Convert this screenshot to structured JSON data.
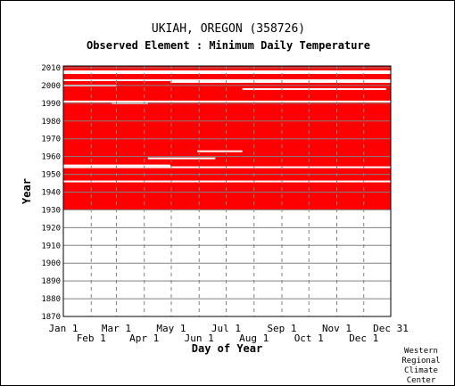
{
  "chart_data": {
    "type": "heatmap",
    "title": "UKIAH, OREGON   (358726)",
    "subtitle": "Observed Element : Minimum Daily Temperature",
    "xlabel": "Day of Year",
    "ylabel": "Year",
    "x_ticks_top_row": [
      "Jan 1",
      "Mar 1",
      "May 1",
      "Jul 1",
      "Sep 1",
      "Nov 1",
      "Dec 31"
    ],
    "x_ticks_bottom_row": [
      "Feb 1",
      "Apr 1",
      "Jun 1",
      "Aug 1",
      "Oct 1",
      "Dec 1"
    ],
    "x_tick_days": {
      "Jan 1": 1,
      "Feb 1": 32,
      "Mar 1": 60,
      "Apr 1": 91,
      "May 1": 121,
      "Jun 1": 152,
      "Jul 1": 182,
      "Aug 1": 213,
      "Sep 1": 244,
      "Oct 1": 274,
      "Nov 1": 305,
      "Dec 1": 335,
      "Dec 31": 365
    },
    "xlim": [
      1,
      365
    ],
    "ylim": [
      1870,
      2011
    ],
    "y_ticks": [
      1870,
      1880,
      1890,
      1900,
      1910,
      1920,
      1930,
      1940,
      1950,
      1960,
      1970,
      1980,
      1990,
      2000,
      2010
    ],
    "data_color": "#ff0000",
    "data_period": [
      1930,
      2011
    ],
    "missing_years_full": [
      1946,
      1954,
      1991,
      2003,
      2008
    ],
    "missing_years_partial": [
      {
        "year": 1955,
        "days": [
          1,
          120
        ]
      },
      {
        "year": 1959,
        "days": [
          95,
          170
        ]
      },
      {
        "year": 1963,
        "days": [
          150,
          200
        ]
      },
      {
        "year": 1990,
        "days": [
          55,
          95
        ]
      },
      {
        "year": 1998,
        "days": [
          200,
          360
        ]
      },
      {
        "year": 2000,
        "days": [
          1,
          60
        ]
      },
      {
        "year": 2002,
        "days": [
          120,
          365
        ]
      },
      {
        "year": 2007,
        "days": [
          1,
          365
        ]
      }
    ],
    "grid": true
  },
  "credit": {
    "line1": "Western",
    "line2": "Regional",
    "line3": "Climate",
    "line4": "Center"
  },
  "colors": {
    "data": "#ff0000",
    "grid": "#808080",
    "axis": "#000000"
  }
}
